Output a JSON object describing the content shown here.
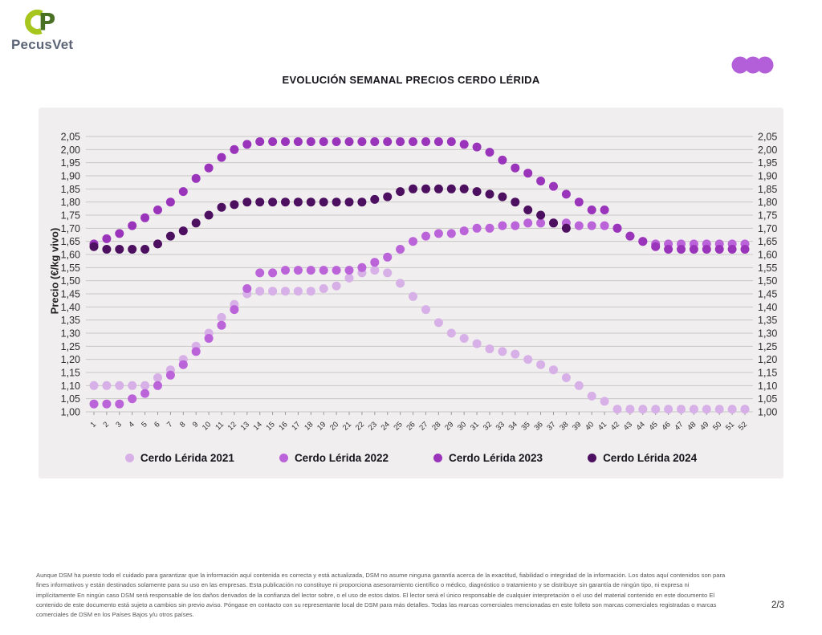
{
  "header": {
    "logo_text": "PecusVet"
  },
  "colors": {
    "panel_bg": "#f0eeee",
    "grid": "#c9c6c6",
    "brand_dots": "#b35fd9",
    "logo_lime": "#a6c51d",
    "logo_green": "#4a7023"
  },
  "chart_data": {
    "type": "scatter",
    "title": "EVOLUCIÓN SEMANAL PRECIOS CERDO LÉRIDA",
    "xlabel": "",
    "ylabel": "Precio (€/kg vivo)",
    "ylim": [
      1.0,
      2.05
    ],
    "ytick_step": 0.05,
    "grid": true,
    "legend_position": "bottom",
    "x": [
      1,
      2,
      3,
      4,
      5,
      6,
      7,
      8,
      9,
      10,
      11,
      12,
      13,
      14,
      15,
      16,
      17,
      18,
      19,
      20,
      21,
      22,
      23,
      24,
      25,
      26,
      27,
      28,
      29,
      30,
      31,
      32,
      33,
      34,
      35,
      36,
      37,
      38,
      39,
      40,
      41,
      42,
      43,
      44,
      45,
      46,
      47,
      48,
      49,
      50,
      51,
      52
    ],
    "series": [
      {
        "name": "Cerdo Lérida 2021",
        "color": "#d8b0e8",
        "values": [
          1.1,
          1.1,
          1.1,
          1.1,
          1.1,
          1.13,
          1.16,
          1.2,
          1.25,
          1.3,
          1.36,
          1.41,
          1.45,
          1.46,
          1.46,
          1.46,
          1.46,
          1.46,
          1.47,
          1.48,
          1.51,
          1.53,
          1.54,
          1.53,
          1.49,
          1.44,
          1.39,
          1.34,
          1.3,
          1.28,
          1.26,
          1.24,
          1.23,
          1.22,
          1.2,
          1.18,
          1.16,
          1.13,
          1.1,
          1.06,
          1.04,
          1.01,
          1.01,
          1.01,
          1.01,
          1.01,
          1.01,
          1.01,
          1.01,
          1.01,
          1.01,
          1.01
        ]
      },
      {
        "name": "Cerdo Lérida 2022",
        "color": "#bb63d8",
        "values": [
          1.03,
          1.03,
          1.03,
          1.05,
          1.07,
          1.1,
          1.14,
          1.18,
          1.23,
          1.28,
          1.33,
          1.39,
          1.47,
          1.53,
          1.53,
          1.54,
          1.54,
          1.54,
          1.54,
          1.54,
          1.54,
          1.55,
          1.57,
          1.59,
          1.62,
          1.65,
          1.67,
          1.68,
          1.68,
          1.69,
          1.7,
          1.7,
          1.71,
          1.71,
          1.72,
          1.72,
          1.72,
          1.72,
          1.71,
          1.71,
          1.71,
          1.7,
          1.67,
          1.65,
          1.64,
          1.64,
          1.64,
          1.64,
          1.64,
          1.64,
          1.64,
          1.64
        ]
      },
      {
        "name": "Cerdo Lérida 2023",
        "color": "#9934bb",
        "values": [
          1.64,
          1.66,
          1.68,
          1.71,
          1.74,
          1.77,
          1.8,
          1.84,
          1.89,
          1.93,
          1.97,
          2.0,
          2.02,
          2.03,
          2.03,
          2.03,
          2.03,
          2.03,
          2.03,
          2.03,
          2.03,
          2.03,
          2.03,
          2.03,
          2.03,
          2.03,
          2.03,
          2.03,
          2.03,
          2.02,
          2.01,
          1.99,
          1.96,
          1.93,
          1.91,
          1.88,
          1.86,
          1.83,
          1.8,
          1.77,
          1.77,
          1.7,
          1.67,
          1.65,
          1.63,
          1.62,
          1.62,
          1.62,
          1.62,
          1.62,
          1.62,
          1.62
        ]
      },
      {
        "name": "Cerdo Lérida 2024",
        "color": "#4d1060",
        "values": [
          1.63,
          1.62,
          1.62,
          1.62,
          1.62,
          1.64,
          1.67,
          1.69,
          1.72,
          1.75,
          1.78,
          1.79,
          1.8,
          1.8,
          1.8,
          1.8,
          1.8,
          1.8,
          1.8,
          1.8,
          1.8,
          1.8,
          1.81,
          1.82,
          1.84,
          1.85,
          1.85,
          1.85,
          1.85,
          1.85,
          1.84,
          1.83,
          1.82,
          1.8,
          1.77,
          1.75,
          1.72,
          1.7,
          null,
          null,
          null,
          null,
          null,
          null,
          null,
          null,
          null,
          null,
          null,
          null,
          null,
          null
        ]
      }
    ]
  },
  "footer": {
    "disclaimer_lines": [
      "Aunque DSM ha puesto todo el cuidado para garantizar que la información aquí contenida es correcta y está actualizada, DSM no asume ninguna garantía acerca de la exactitud, fiabilidad o integridad de la información. Los datos aquí contenidos son para",
      "fines informativos y están destinados solamente para su uso en las empresas. Esta publicación no constituye ni proporciona asesoramiento científico o médico, diagnóstico o tratamiento y se distribuye sin garantía de ningún tipo, ni expresa ni",
      "implícitamente En ningún caso DSM será responsable de los daños derivados de la confianza del lector sobre, o el uso de estos datos. El lector será el único responsable de cualquier interpretación o el uso del material contenido en este documento El",
      "contenido de este documento está sujeto a cambios sin previo aviso. Póngase en contacto con su representante local de DSM para más detalles. Todas las marcas comerciales mencionadas en este folleto son marcas comerciales registradas o marcas",
      "comerciales de DSM en los Países Bajos y/u otros países."
    ],
    "page": "2/3"
  }
}
